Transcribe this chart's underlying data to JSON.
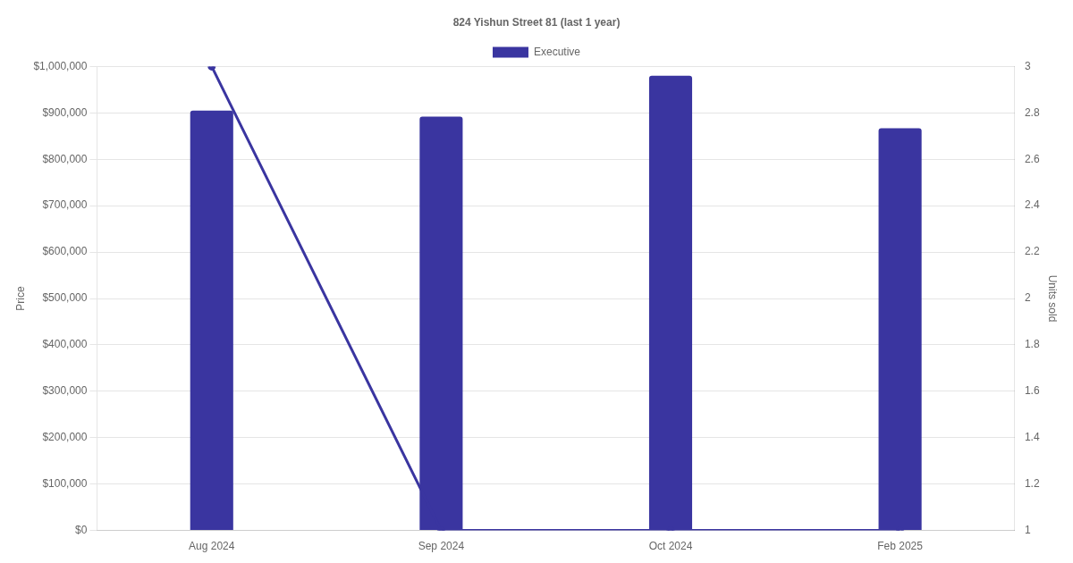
{
  "chart_data": {
    "type": "bar",
    "title": "824 Yishun Street 81 (last 1 year)",
    "categories": [
      "Aug 2024",
      "Sep 2024",
      "Oct 2024",
      "Feb 2025"
    ],
    "series": [
      {
        "name": "Executive",
        "color": "#3a35a0",
        "values": [
          905000,
          892000,
          980000,
          867000
        ]
      },
      {
        "type": "line",
        "axis": "y2",
        "color": "#3a35a0",
        "values": [
          3,
          1,
          1,
          1
        ]
      }
    ],
    "ylabel": "Price",
    "y2label": "Units sold",
    "ylim": [
      0,
      1000000
    ],
    "yticks": [
      {
        "value": 0,
        "label": "$0"
      },
      {
        "value": 100000,
        "label": "$100,000"
      },
      {
        "value": 200000,
        "label": "$200,000"
      },
      {
        "value": 300000,
        "label": "$300,000"
      },
      {
        "value": 400000,
        "label": "$400,000"
      },
      {
        "value": 500000,
        "label": "$500,000"
      },
      {
        "value": 600000,
        "label": "$600,000"
      },
      {
        "value": 700000,
        "label": "$700,000"
      },
      {
        "value": 800000,
        "label": "$800,000"
      },
      {
        "value": 900000,
        "label": "$900,000"
      },
      {
        "value": 1000000,
        "label": "$1,000,000"
      }
    ],
    "y2lim": [
      1,
      3
    ],
    "y2ticks": [
      1,
      1.2,
      1.4,
      1.6,
      1.8,
      2,
      2.2,
      2.4,
      2.6,
      2.8,
      3
    ],
    "grid": "y",
    "legend": "top",
    "marker": "circle",
    "line_style": "solid"
  }
}
